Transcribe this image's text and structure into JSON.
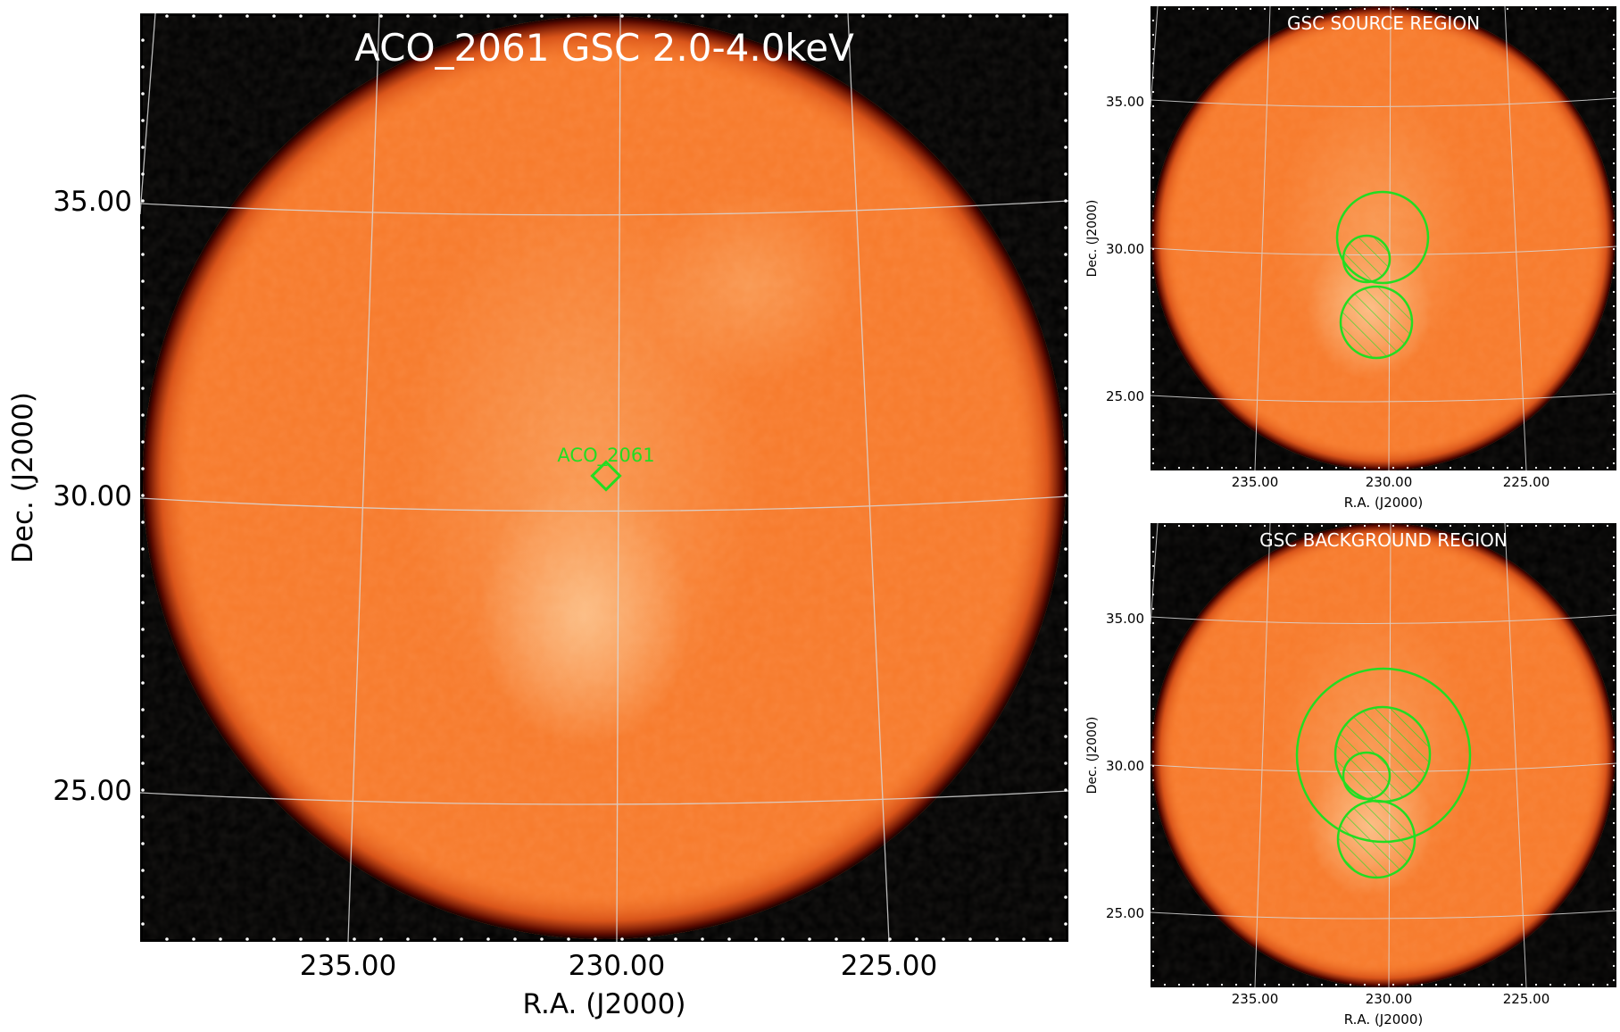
{
  "main_panel": {
    "title": "ACO_2061 GSC 2.0-4.0keV",
    "source_label": "ACO_2061",
    "xlabel": "R.A. (J2000)",
    "ylabel": "Dec. (J2000)",
    "x_ticks": [
      "235.00",
      "230.00",
      "225.00"
    ],
    "y_ticks": [
      "35.00",
      "30.00",
      "25.00"
    ]
  },
  "source_panel": {
    "title": "GSC SOURCE REGION",
    "xlabel": "R.A. (J2000)",
    "ylabel": "Dec. (J2000)",
    "x_ticks": [
      "235.00",
      "230.00",
      "225.00"
    ],
    "y_ticks": [
      "35.00",
      "30.00",
      "25.00"
    ]
  },
  "background_panel": {
    "title": "GSC BACKGROUND REGION",
    "xlabel": "R.A. (J2000)",
    "ylabel": "Dec. (J2000)",
    "x_ticks": [
      "235.00",
      "230.00",
      "225.00"
    ],
    "y_ticks": [
      "35.00",
      "30.00",
      "25.00"
    ]
  },
  "colors": {
    "disk": "#f77a2b",
    "disk_bright": "#fbb77c",
    "disk_edge": "#5a0a00",
    "region": "#22dd22",
    "grid": "#d8d8d8",
    "frame_bg": "#000000"
  },
  "icons": {
    "source_marker": "diamond-marker"
  }
}
